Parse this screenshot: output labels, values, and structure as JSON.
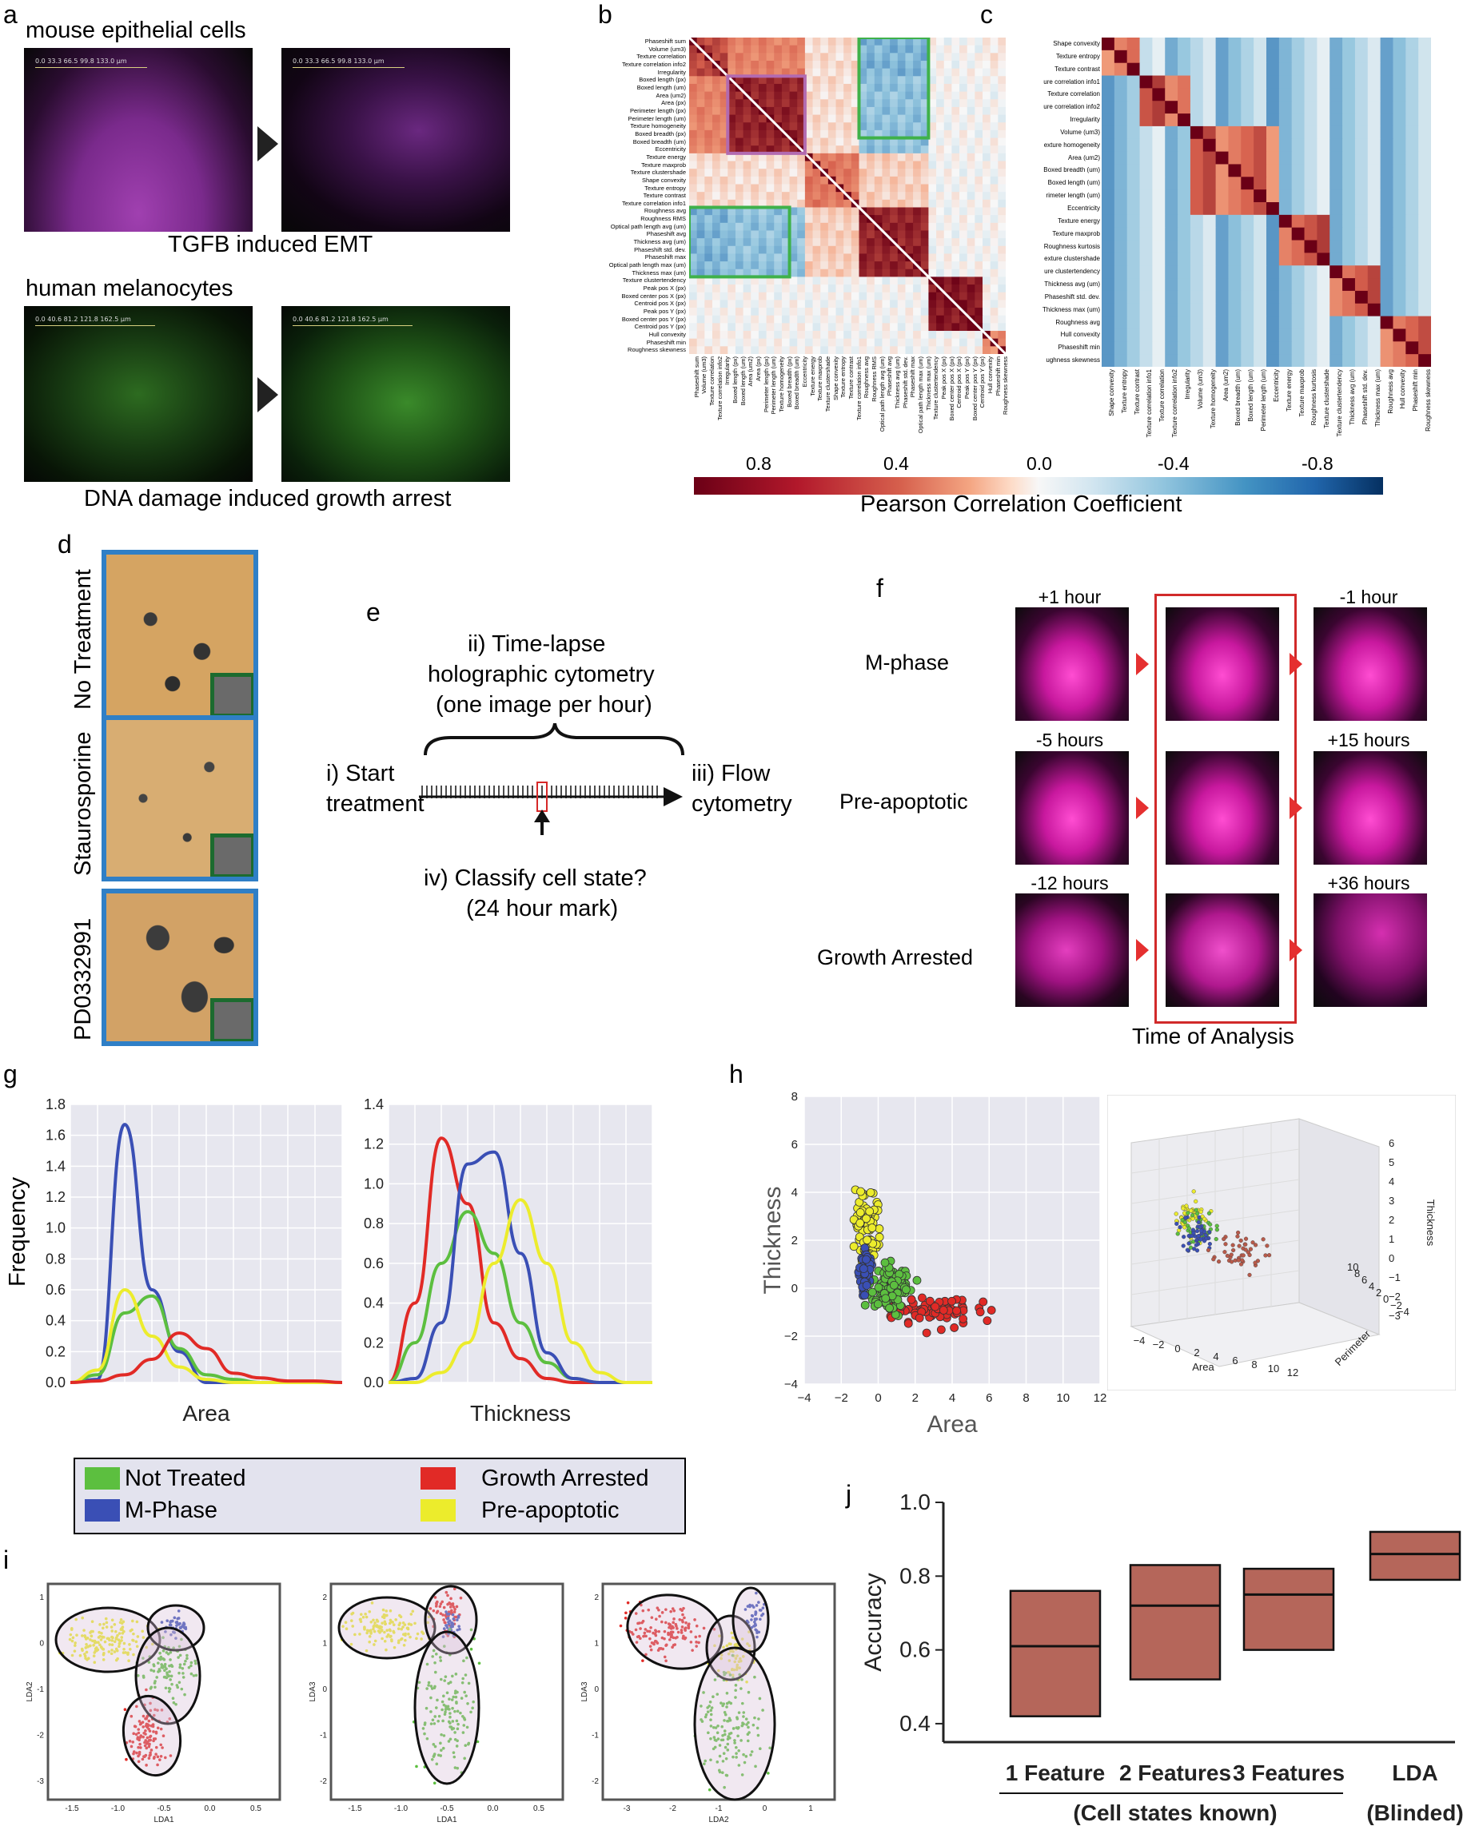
{
  "panels": {
    "a": "a",
    "b": "b",
    "c": "c",
    "d": "d",
    "e": "e",
    "f": "f",
    "g": "g",
    "h": "h",
    "i": "i",
    "j": "j"
  },
  "panel_a": {
    "top_title": "mouse epithelial cells",
    "top_caption": "TGFB induced EMT",
    "bottom_title": "human melanocytes",
    "bottom_caption": "DNA damage induced growth arrest",
    "scale_top": "0.0    33.3    66.5    99.8    133.0 µm",
    "scale_bottom": "0.0    40.6    81.2    121.8    162.5 µm"
  },
  "panel_b": {
    "labels": [
      "Phaseshift sum",
      "Volume (um3)",
      "Texture correlation",
      "Texture correlation info2",
      "Irregularity",
      "Boxed length (px)",
      "Boxed length (um)",
      "Area (um2)",
      "Area (px)",
      "Perimeter length (px)",
      "Perimeter length (um)",
      "Texture homogeneity",
      "Boxed breadth (px)",
      "Boxed breadth (um)",
      "Eccentricity",
      "Texture energy",
      "Texture maxprob",
      "Texture clustershade",
      "Shape convexity",
      "Texture entropy",
      "Texture contrast",
      "Texture correlation info1",
      "Roughness avg",
      "Roughness RMS",
      "Optical path length avg (um)",
      "Phaseshift avg",
      "Thickness avg (um)",
      "Phaseshift std. dev.",
      "Phaseshift max",
      "Optical path length max (um)",
      "Thickness max (um)",
      "Texture clustertendency",
      "Peak pos X (px)",
      "Boxed center pos X (px)",
      "Centroid pos X (px)",
      "Peak pos Y (px)",
      "Boxed center pos Y (px)",
      "Centroid pos Y (px)",
      "Hull convexity",
      "Phaseshift min",
      "Roughness skewness"
    ]
  },
  "panel_c": {
    "labels": [
      "Shape convexity",
      "Texture entropy",
      "Texture contrast",
      "ure correlation info1",
      "Texture correlation",
      "ure correlation info2",
      "Irregularity",
      "Volume (um3)",
      "exture homogeneity",
      "Area (um2)",
      "Boxed breadth (um)",
      "Boxed length (um)",
      "rimeter length (um)",
      "Eccentricity",
      "Texture energy",
      "Texture maxprob",
      "Roughness kurtosis",
      "exture clustershade",
      "ure clustertendency",
      "Thickness avg (um)",
      "Phaseshift std. dev.",
      "Thickness max (um)",
      "Roughness avg",
      "Hull convexity",
      "Phaseshift min",
      "ughness skewness"
    ],
    "bottom_labels": [
      "Shape convexity",
      "Texture entropy",
      "Texture contrast",
      "Texture correlation info1",
      "Texture correlation",
      "Texture correlation info2",
      "Irregularity",
      "Volume (um3)",
      "Texture homogeneity",
      "Area (um2)",
      "Boxed breadth (um)",
      "Boxed length (um)",
      "Perimeter length (um)",
      "Eccentricity",
      "Texture energy",
      "Texture maxprob",
      "Roughness kurtosis",
      "Texture clustershade",
      "Texture clustertendency",
      "Thickness avg (um)",
      "Phaseshift std. dev.",
      "Thickness max (um)",
      "Roughness avg",
      "Hull convexity",
      "Phaseshift min",
      "Roughness skewness"
    ]
  },
  "colorbar": {
    "ticks": [
      "0.8",
      "0.4",
      "0.0",
      "-0.4",
      "-0.8"
    ],
    "label": "Pearson Correlation Coefficient",
    "colors": [
      "#6b0016",
      "#d6604d",
      "#fddbc7",
      "#f7f7f7",
      "#d1e5f0",
      "#4393c3",
      "#053061"
    ]
  },
  "panel_d": {
    "labels": [
      "No Treatment",
      "Staurosporine",
      "PD0332991"
    ]
  },
  "panel_e": {
    "timelapse": "ii) Time-lapse",
    "holographic": "holographic cytometry",
    "per_hour": "(one image per hour)",
    "start1": "i) Start",
    "start2": "treatment",
    "flow1": "iii) Flow",
    "flow2": "cytometry",
    "classify1": "iv) Classify cell state?",
    "classify2": "(24 hour mark)"
  },
  "panel_f": {
    "rows": [
      "M-phase",
      "Pre-apoptotic",
      "Growth Arrested"
    ],
    "before": [
      "+1 hour",
      "-5 hours",
      "-12 hours"
    ],
    "after": [
      "-1 hour",
      "+15 hours",
      "+36 hours"
    ],
    "footer": "Time of Analysis"
  },
  "panel_g": {
    "ylabel": "Frequency",
    "area_xlabel": "Area",
    "thick_xlabel": "Thickness",
    "area_yticks": [
      "1.8",
      "1.6",
      "1.4",
      "1.2",
      "1.0",
      "0.8",
      "0.6",
      "0.4",
      "0.2",
      "0.0"
    ],
    "thick_yticks": [
      "1.4",
      "1.2",
      "1.0",
      "0.8",
      "0.6",
      "0.4",
      "0.2",
      "0.0"
    ]
  },
  "legend": {
    "items": [
      {
        "label": "Not Treated",
        "color": "#5cbf3f"
      },
      {
        "label": "M-Phase",
        "color": "#3a4fb5"
      },
      {
        "label": "Growth Arrested",
        "color": "#e12a26"
      },
      {
        "label": "Pre-apoptotic",
        "color": "#ecec2c"
      }
    ]
  },
  "panel_h": {
    "ylabel": "Thickness",
    "xlabel": "Area",
    "yticks": [
      "8",
      "6",
      "4",
      "2",
      "0",
      "−2",
      "−4"
    ],
    "xticks": [
      "−4",
      "−2",
      "0",
      "2",
      "4",
      "6",
      "8",
      "10",
      "12"
    ],
    "d3_zlabel": "Thickness",
    "d3_xlabel": "Area",
    "d3_ylabel": "Perimeter",
    "d3_zticks": [
      "6",
      "5",
      "4",
      "3",
      "2",
      "1",
      "0",
      "−1",
      "−2",
      "−3"
    ],
    "d3_xticks": [
      "−4",
      "−2",
      "0",
      "2",
      "4",
      "6",
      "8",
      "10",
      "12"
    ],
    "d3_yticks": [
      "10",
      "8",
      "6",
      "4",
      "2",
      "0",
      "−2",
      "−4"
    ]
  },
  "panel_i": {
    "plots": [
      {
        "xlabel": "LDA1",
        "ylabel": "LDA2",
        "xticks": [
          "-1.5",
          "-1.0",
          "-0.5",
          "0.0",
          "0.5"
        ],
        "yticks": [
          "1",
          "0",
          "-1",
          "-2",
          "-3"
        ]
      },
      {
        "xlabel": "LDA1",
        "ylabel": "LDA3",
        "xticks": [
          "-1.5",
          "-1.0",
          "-0.5",
          "0.0",
          "0.5"
        ],
        "yticks": [
          "2",
          "1",
          "0",
          "-1",
          "-2"
        ]
      },
      {
        "xlabel": "LDA2",
        "ylabel": "LDA3",
        "xticks": [
          "-3",
          "-2",
          "-1",
          "0",
          "1"
        ],
        "yticks": [
          "2",
          "1",
          "0",
          "-1",
          "-2"
        ]
      }
    ]
  },
  "panel_j": {
    "ylabel": "Accuracy",
    "yticks": [
      "1.0",
      "0.8",
      "0.6",
      "0.4"
    ],
    "categories": [
      "1 Feature",
      "2 Features",
      "3 Features",
      "LDA"
    ],
    "group1": "(Cell states known)",
    "group2": "(Blinded)"
  },
  "chart_data": [
    {
      "type": "line",
      "title": "Area",
      "xlabel": "Area",
      "ylabel": "Frequency",
      "ylim": [
        0,
        1.8
      ],
      "series": [
        {
          "name": "M-Phase",
          "x": [
            0,
            1,
            2,
            3,
            4,
            5,
            6,
            7,
            8,
            9,
            10
          ],
          "values": [
            0,
            0.02,
            1.67,
            0.6,
            0.2,
            0,
            0,
            0,
            0,
            0,
            0
          ]
        },
        {
          "name": "Not Treated",
          "x": [
            0,
            1,
            2,
            3,
            4,
            5,
            6,
            7,
            8,
            9,
            10
          ],
          "values": [
            0,
            0.05,
            0.45,
            0.56,
            0.22,
            0.05,
            0.02,
            0,
            0,
            0,
            0
          ]
        },
        {
          "name": "Pre-apoptotic",
          "x": [
            0,
            1,
            2,
            3,
            4,
            5,
            6,
            7,
            8,
            9,
            10
          ],
          "values": [
            0,
            0.08,
            0.6,
            0.3,
            0.1,
            0.02,
            0,
            0,
            0,
            0,
            0
          ]
        },
        {
          "name": "Growth Arrested",
          "x": [
            0,
            1,
            2,
            3,
            4,
            5,
            6,
            7,
            8,
            9,
            10
          ],
          "values": [
            0,
            0.01,
            0.05,
            0.15,
            0.32,
            0.22,
            0.06,
            0.03,
            0.01,
            0.01,
            0
          ]
        }
      ]
    },
    {
      "type": "line",
      "title": "Thickness",
      "xlabel": "Thickness",
      "ylabel": "Frequency",
      "ylim": [
        0,
        1.4
      ],
      "series": [
        {
          "name": "Growth Arrested",
          "x": [
            0,
            1,
            2,
            3,
            4,
            5,
            6,
            7,
            8,
            9,
            10
          ],
          "values": [
            0,
            0.4,
            1.23,
            0.9,
            0.3,
            0.12,
            0.02,
            0,
            0,
            0,
            0
          ]
        },
        {
          "name": "Not Treated",
          "x": [
            0,
            1,
            2,
            3,
            4,
            5,
            6,
            7,
            8,
            9,
            10
          ],
          "values": [
            0,
            0.2,
            0.6,
            0.86,
            0.65,
            0.3,
            0.1,
            0.02,
            0,
            0,
            0
          ]
        },
        {
          "name": "M-Phase",
          "x": [
            0,
            1,
            2,
            3,
            4,
            5,
            6,
            7,
            8,
            9,
            10
          ],
          "values": [
            0,
            0.02,
            0.3,
            1.1,
            1.16,
            0.65,
            0.15,
            0.02,
            0,
            0,
            0
          ]
        },
        {
          "name": "Pre-apoptotic",
          "x": [
            0,
            1,
            2,
            3,
            4,
            5,
            6,
            7,
            8,
            9,
            10
          ],
          "values": [
            0,
            0,
            0.05,
            0.2,
            0.6,
            0.92,
            0.6,
            0.2,
            0.05,
            0,
            0
          ]
        }
      ]
    },
    {
      "type": "bar",
      "title": "Accuracy",
      "ylabel": "Accuracy",
      "ylim": [
        0.35,
        1.0
      ],
      "categories": [
        "1 Feature",
        "2 Features",
        "3 Features",
        "LDA"
      ],
      "series": [
        {
          "name": "low",
          "values": [
            0.42,
            0.52,
            0.6,
            0.79
          ]
        },
        {
          "name": "median",
          "values": [
            0.61,
            0.72,
            0.75,
            0.86
          ]
        },
        {
          "name": "high",
          "values": [
            0.76,
            0.83,
            0.82,
            0.92
          ]
        }
      ]
    }
  ]
}
